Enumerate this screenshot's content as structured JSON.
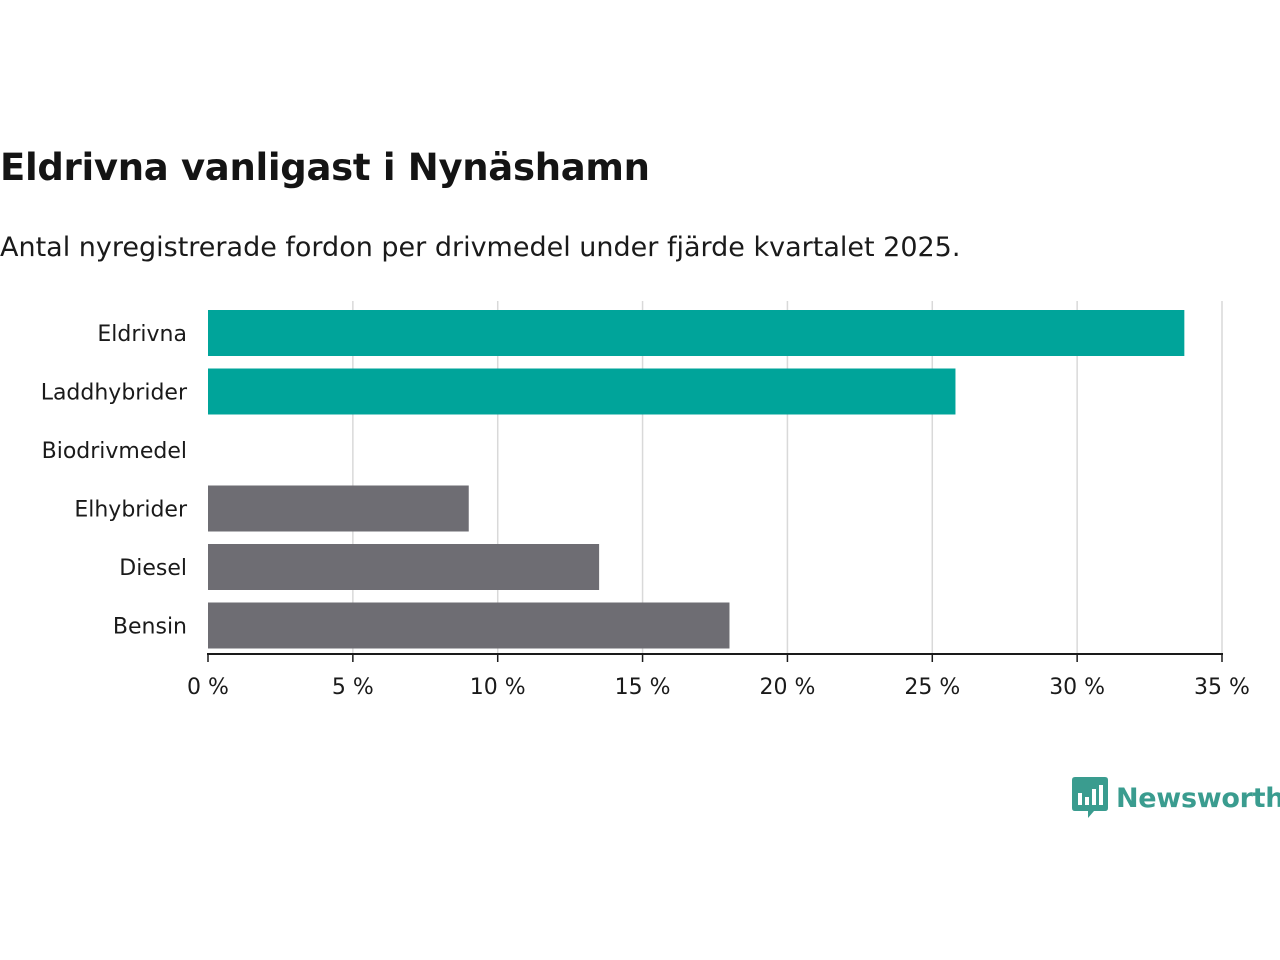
{
  "colors": {
    "highlight": "#00a49a",
    "neutral": "#6e6d73",
    "grid": "#d9d9d9",
    "axis": "#1a1a1a",
    "brand": "#3a9c8f"
  },
  "brand": {
    "name": "Newsworthy",
    "icon": "bar-chart-speech-icon"
  },
  "chart_data": {
    "type": "bar",
    "orientation": "horizontal",
    "title": "Eldrivna vanligast i Nynäshamn",
    "subtitle": "Antal nyregistrerade fordon per drivmedel under fjärde kvartalet 2025.",
    "xlabel": "",
    "ylabel": "",
    "categories": [
      "Eldrivna",
      "Laddhybrider",
      "Biodrivmedel",
      "Elhybrider",
      "Diesel",
      "Bensin"
    ],
    "values": [
      33.7,
      25.8,
      0,
      9.0,
      13.5,
      18.0
    ],
    "highlight": [
      true,
      true,
      true,
      false,
      false,
      false
    ],
    "xlim": [
      0,
      35
    ],
    "xticks": [
      0,
      5,
      10,
      15,
      20,
      25,
      30,
      35
    ],
    "xtick_labels": [
      "0 %",
      "5 %",
      "10 %",
      "15 %",
      "20 %",
      "25 %",
      "30 %",
      "35 %"
    ],
    "grid": true,
    "legend": "none"
  }
}
